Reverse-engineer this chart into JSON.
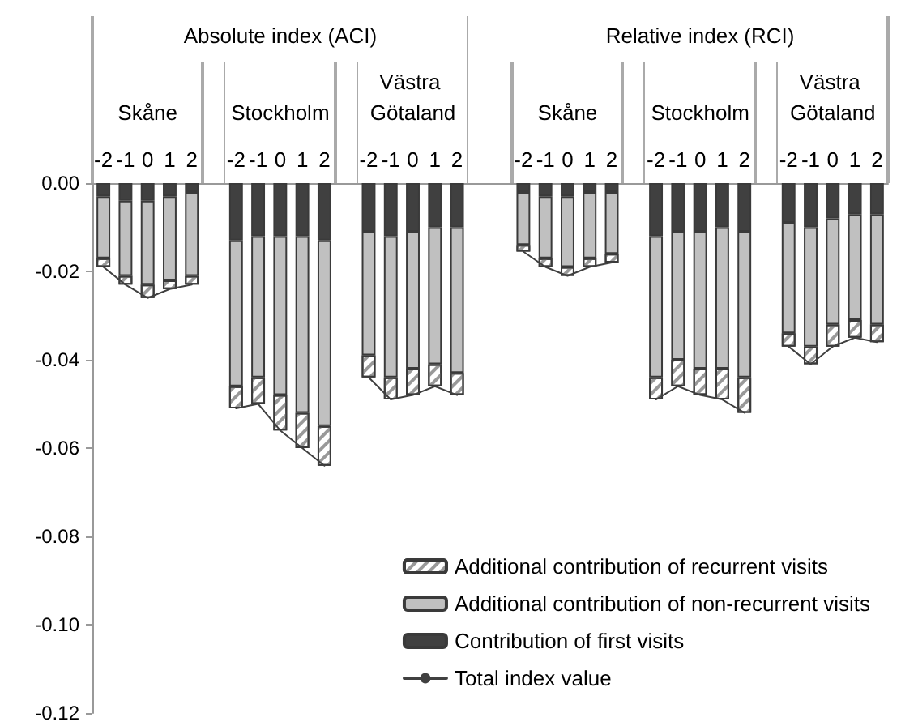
{
  "chart_data": {
    "type": "bar",
    "stacked": true,
    "categories": [
      "-2",
      "-1",
      "0",
      "1",
      "2",
      null,
      "-2",
      "-1",
      "0",
      "1",
      "2",
      null,
      "-2",
      "-1",
      "0",
      "1",
      "2",
      null,
      null,
      "-2",
      "-1",
      "0",
      "1",
      "2",
      null,
      "-2",
      "-1",
      "0",
      "1",
      "2",
      null,
      "-2",
      "-1",
      "0",
      "1",
      "2"
    ],
    "annotations": [
      "Absolute index (ACI)",
      "Relative index (RCI)",
      "Skåne",
      "Stockholm",
      "Västra Götaland",
      "Skåne",
      "Stockholm",
      "Västra Götaland"
    ],
    "series": [
      {
        "name": "Contribution of first visits",
        "color": "#404040",
        "values": [
          -0.003,
          -0.004,
          -0.004,
          -0.003,
          -0.002,
          null,
          -0.013,
          -0.012,
          -0.012,
          -0.012,
          -0.013,
          null,
          -0.011,
          -0.012,
          -0.011,
          -0.01,
          -0.01,
          null,
          null,
          -0.002,
          -0.003,
          -0.003,
          -0.002,
          -0.002,
          null,
          -0.012,
          -0.011,
          -0.011,
          -0.01,
          -0.011,
          null,
          -0.009,
          -0.01,
          -0.008,
          -0.007,
          -0.007
        ]
      },
      {
        "name": "Additional contribution of non-recurrent visits",
        "color": "#c0c0c0",
        "values": [
          -0.014,
          -0.017,
          -0.019,
          -0.019,
          -0.019,
          null,
          -0.033,
          -0.032,
          -0.036,
          -0.04,
          -0.042,
          null,
          -0.028,
          -0.032,
          -0.031,
          -0.031,
          -0.033,
          null,
          null,
          -0.012,
          -0.014,
          -0.016,
          -0.015,
          -0.014,
          null,
          -0.032,
          -0.029,
          -0.031,
          -0.032,
          -0.033,
          null,
          -0.025,
          -0.027,
          -0.024,
          -0.024,
          -0.025
        ]
      },
      {
        "name": "Additional contribution of recurrent visits",
        "color": "#ffffff",
        "values": [
          -0.002,
          -0.002,
          -0.003,
          -0.002,
          -0.002,
          null,
          -0.005,
          -0.006,
          -0.008,
          -0.008,
          -0.009,
          null,
          -0.005,
          -0.005,
          -0.006,
          -0.005,
          -0.005,
          null,
          null,
          -0.0015,
          -0.002,
          -0.002,
          -0.002,
          -0.002,
          null,
          -0.005,
          -0.006,
          -0.006,
          -0.007,
          -0.008,
          null,
          -0.003,
          -0.004,
          -0.005,
          -0.004,
          -0.004
        ]
      },
      {
        "name": "Total index value",
        "type": "line",
        "color": "#404040",
        "values": [
          -0.019,
          -0.023,
          -0.026,
          -0.024,
          -0.023,
          null,
          -0.051,
          -0.05,
          -0.056,
          -0.06,
          -0.064,
          null,
          -0.044,
          -0.049,
          -0.048,
          -0.046,
          -0.048,
          null,
          null,
          -0.0155,
          -0.019,
          -0.021,
          -0.019,
          -0.018,
          null,
          -0.049,
          -0.046,
          -0.048,
          -0.049,
          -0.052,
          null,
          -0.037,
          -0.041,
          -0.037,
          -0.035,
          -0.036
        ]
      }
    ],
    "ylim": [
      -0.12,
      0
    ],
    "yticks": [
      {
        "value": 0,
        "label": "0.00"
      },
      {
        "value": -0.02,
        "label": "-0.02"
      },
      {
        "value": -0.04,
        "label": "-0.04"
      },
      {
        "value": -0.06,
        "label": "-0.06"
      },
      {
        "value": -0.08,
        "label": "-0.08"
      },
      {
        "value": -0.1,
        "label": "-0.10"
      },
      {
        "value": -0.12,
        "label": "-0.12"
      }
    ],
    "grid": false,
    "legend": "bottom right",
    "marker": "none",
    "line_style": "solid"
  }
}
